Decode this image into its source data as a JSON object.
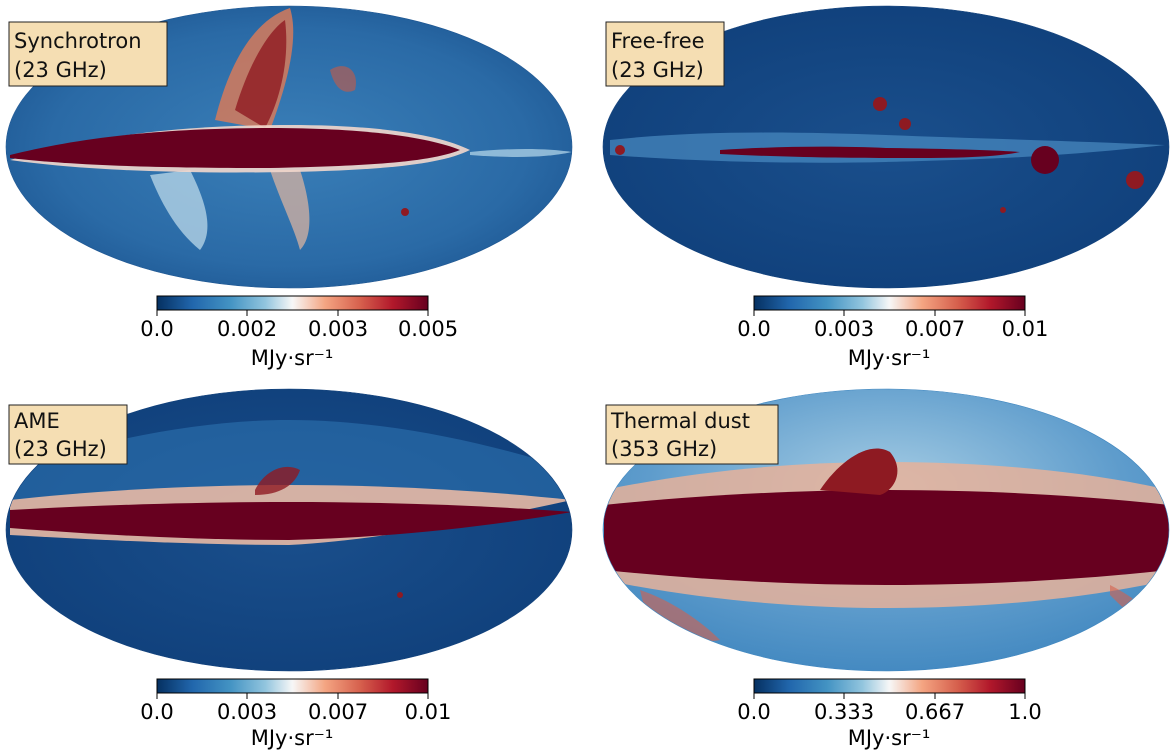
{
  "chart_data": [
    {
      "type": "heatmap",
      "label_lines": [
        "Synchrotron",
        "(23 GHz)"
      ],
      "colorbar": {
        "min": 0.0,
        "max": 0.005,
        "tick_labels": [
          "0.0",
          "0.002",
          "0.003",
          "0.005"
        ],
        "unit": "MJy·sr⁻¹"
      },
      "cmap": "RdBu_r"
    },
    {
      "type": "heatmap",
      "label_lines": [
        "Free-free",
        "(23 GHz)"
      ],
      "colorbar": {
        "min": 0.0,
        "max": 0.01,
        "tick_labels": [
          "0.0",
          "0.003",
          "0.007",
          "0.01"
        ],
        "unit": "MJy·sr⁻¹"
      },
      "cmap": "RdBu_r"
    },
    {
      "type": "heatmap",
      "label_lines": [
        "AME",
        "(23 GHz)"
      ],
      "colorbar": {
        "min": 0.0,
        "max": 0.01,
        "tick_labels": [
          "0.0",
          "0.003",
          "0.007",
          "0.01"
        ],
        "unit": "MJy·sr⁻¹"
      },
      "cmap": "RdBu_r"
    },
    {
      "type": "heatmap",
      "label_lines": [
        "Thermal dust",
        "(353 GHz)"
      ],
      "colorbar": {
        "min": 0.0,
        "max": 1.0,
        "tick_labels": [
          "0.0",
          "0.333",
          "0.667",
          "1.0"
        ],
        "unit": "MJy·sr⁻¹"
      },
      "cmap": "RdBu_r"
    }
  ],
  "colors": {
    "label_box_fill": "#f5deb3",
    "cmap_stops": [
      "#053061",
      "#2166ac",
      "#4393c3",
      "#92c5de",
      "#f7f7f7",
      "#f4a582",
      "#d6604d",
      "#b2182b",
      "#67001f"
    ]
  }
}
